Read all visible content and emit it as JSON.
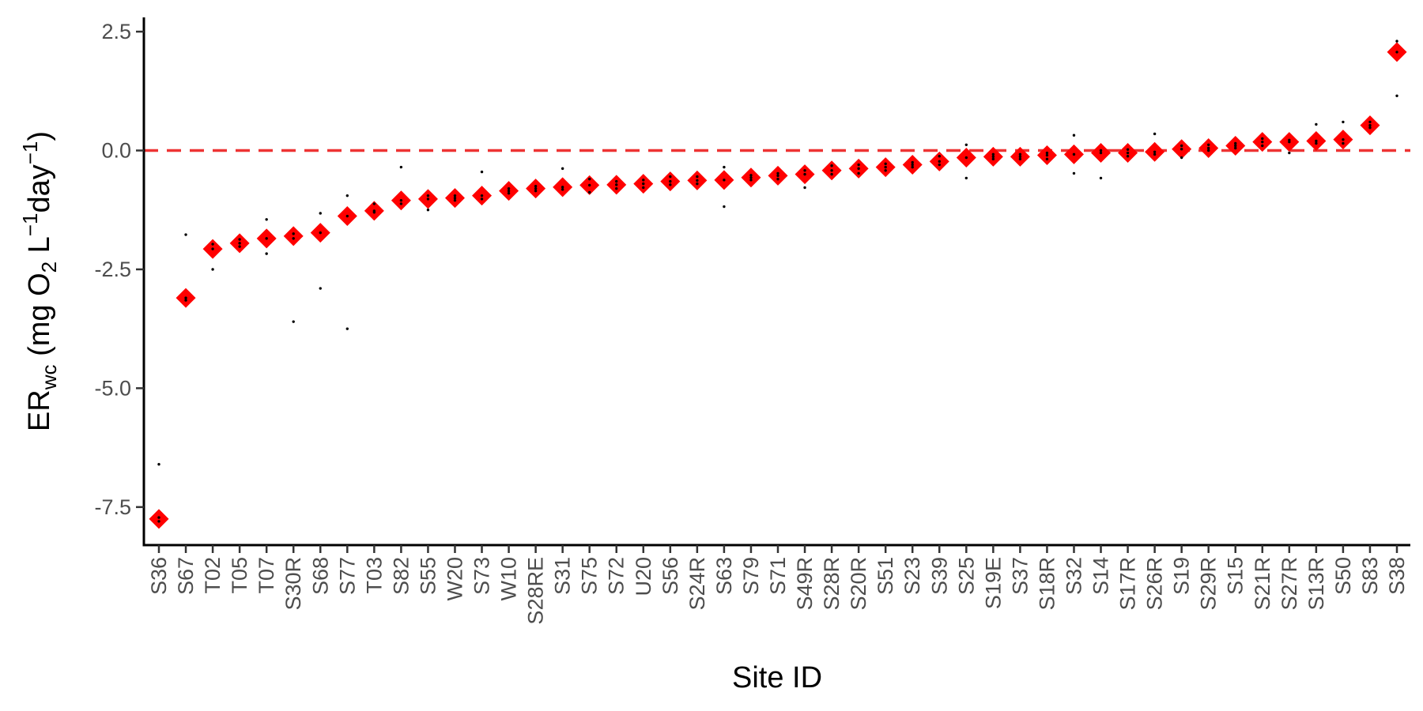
{
  "chart_data": {
    "type": "scatter",
    "xlabel": "Site ID",
    "ylabel": {
      "main": "ER",
      "main_subscript": "wc",
      "unit_open": " (mg O",
      "unit_o2_subscript": "2",
      "unit_l": " L",
      "unit_l_superscript": "−1",
      "unit_day": "day",
      "unit_day_superscript": "−1",
      "unit_close": ")"
    },
    "ylim": [
      -8.3,
      2.8
    ],
    "yticks": [
      2.5,
      0.0,
      -2.5,
      -5.0,
      -7.5
    ],
    "ytick_labels": [
      "2.5",
      "0.0",
      "-2.5",
      "-5.0",
      "-7.5"
    ],
    "reference_line": {
      "y": 0,
      "style": "dashed",
      "color": "#ee3333"
    },
    "marker_color": "#ff0000",
    "point_color": "#000000",
    "categories": [
      "S36",
      "S67",
      "T02",
      "T05",
      "T07",
      "S30R",
      "S68",
      "S77",
      "T03",
      "S82",
      "S55",
      "W20",
      "S73",
      "W10",
      "S28RE",
      "S31",
      "S75",
      "S72",
      "U20",
      "S56",
      "S24R",
      "S63",
      "S79",
      "S71",
      "S49R",
      "S28R",
      "S20R",
      "S51",
      "S23",
      "S39",
      "S25",
      "S19E",
      "S37",
      "S18R",
      "S32",
      "S14",
      "S17R",
      "S26R",
      "S19",
      "S29R",
      "S15",
      "S21R",
      "S27R",
      "S13R",
      "S50",
      "S83",
      "S38"
    ],
    "means": [
      -7.75,
      -3.1,
      -2.07,
      -1.95,
      -1.85,
      -1.8,
      -1.73,
      -1.38,
      -1.27,
      -1.05,
      -1.02,
      -1.0,
      -0.95,
      -0.85,
      -0.8,
      -0.77,
      -0.73,
      -0.72,
      -0.7,
      -0.65,
      -0.63,
      -0.62,
      -0.57,
      -0.53,
      -0.5,
      -0.42,
      -0.38,
      -0.35,
      -0.3,
      -0.23,
      -0.15,
      -0.13,
      -0.13,
      -0.1,
      -0.08,
      -0.05,
      -0.05,
      -0.03,
      0.03,
      0.05,
      0.1,
      0.18,
      0.18,
      0.2,
      0.23,
      0.53,
      2.07
    ],
    "observations": [
      [
        -6.6,
        -7.72,
        -7.8
      ],
      [
        -1.77,
        -3.1,
        -3.15
      ],
      [
        -1.97,
        -2.07,
        -2.5
      ],
      [
        -1.87,
        -1.95,
        -2.02
      ],
      [
        -1.45,
        -1.85,
        -2.17
      ],
      [
        -1.75,
        -1.85,
        -3.6
      ],
      [
        -1.32,
        -1.73,
        -2.9
      ],
      [
        -0.95,
        -1.38,
        -3.75
      ],
      [
        -1.12,
        -1.27,
        -1.3
      ],
      [
        -0.35,
        -1.05,
        -1.12
      ],
      [
        -0.95,
        -1.02,
        -1.25
      ],
      [
        -0.95,
        -1.0,
        -1.05
      ],
      [
        -0.45,
        -0.95,
        -1.02
      ],
      [
        -0.8,
        -0.85,
        -0.9
      ],
      [
        -0.75,
        -0.8,
        -0.85
      ],
      [
        -0.38,
        -0.77,
        -0.82
      ],
      [
        -0.6,
        -0.73,
        -0.88
      ],
      [
        -0.65,
        -0.72,
        -0.8
      ],
      [
        -0.62,
        -0.7,
        -0.78
      ],
      [
        -0.55,
        -0.65,
        -0.72
      ],
      [
        -0.55,
        -0.63,
        -0.7
      ],
      [
        -0.35,
        -0.62,
        -1.18
      ],
      [
        -0.52,
        -0.57,
        -0.62
      ],
      [
        -0.48,
        -0.53,
        -0.6
      ],
      [
        -0.42,
        -0.5,
        -0.78
      ],
      [
        -0.32,
        -0.42,
        -0.5
      ],
      [
        -0.3,
        -0.38,
        -0.48
      ],
      [
        -0.28,
        -0.35,
        -0.42
      ],
      [
        -0.25,
        -0.3,
        -0.35
      ],
      [
        -0.12,
        -0.23,
        -0.3
      ],
      [
        0.12,
        -0.15,
        -0.58
      ],
      [
        -0.08,
        -0.13,
        -0.18
      ],
      [
        -0.08,
        -0.13,
        -0.18
      ],
      [
        -0.05,
        -0.1,
        -0.18
      ],
      [
        0.32,
        -0.08,
        -0.48
      ],
      [
        0.0,
        -0.05,
        -0.58
      ],
      [
        0.02,
        -0.05,
        -0.12
      ],
      [
        0.35,
        -0.03,
        -0.08
      ],
      [
        0.1,
        0.03,
        -0.15
      ],
      [
        0.12,
        0.05,
        0.0
      ],
      [
        0.15,
        0.1,
        0.05
      ],
      [
        0.25,
        0.18,
        0.1
      ],
      [
        0.22,
        0.18,
        -0.05
      ],
      [
        0.55,
        0.2,
        0.15
      ],
      [
        0.6,
        0.23,
        0.15
      ],
      [
        0.6,
        0.53,
        0.48
      ],
      [
        2.3,
        2.07,
        1.15
      ]
    ]
  }
}
